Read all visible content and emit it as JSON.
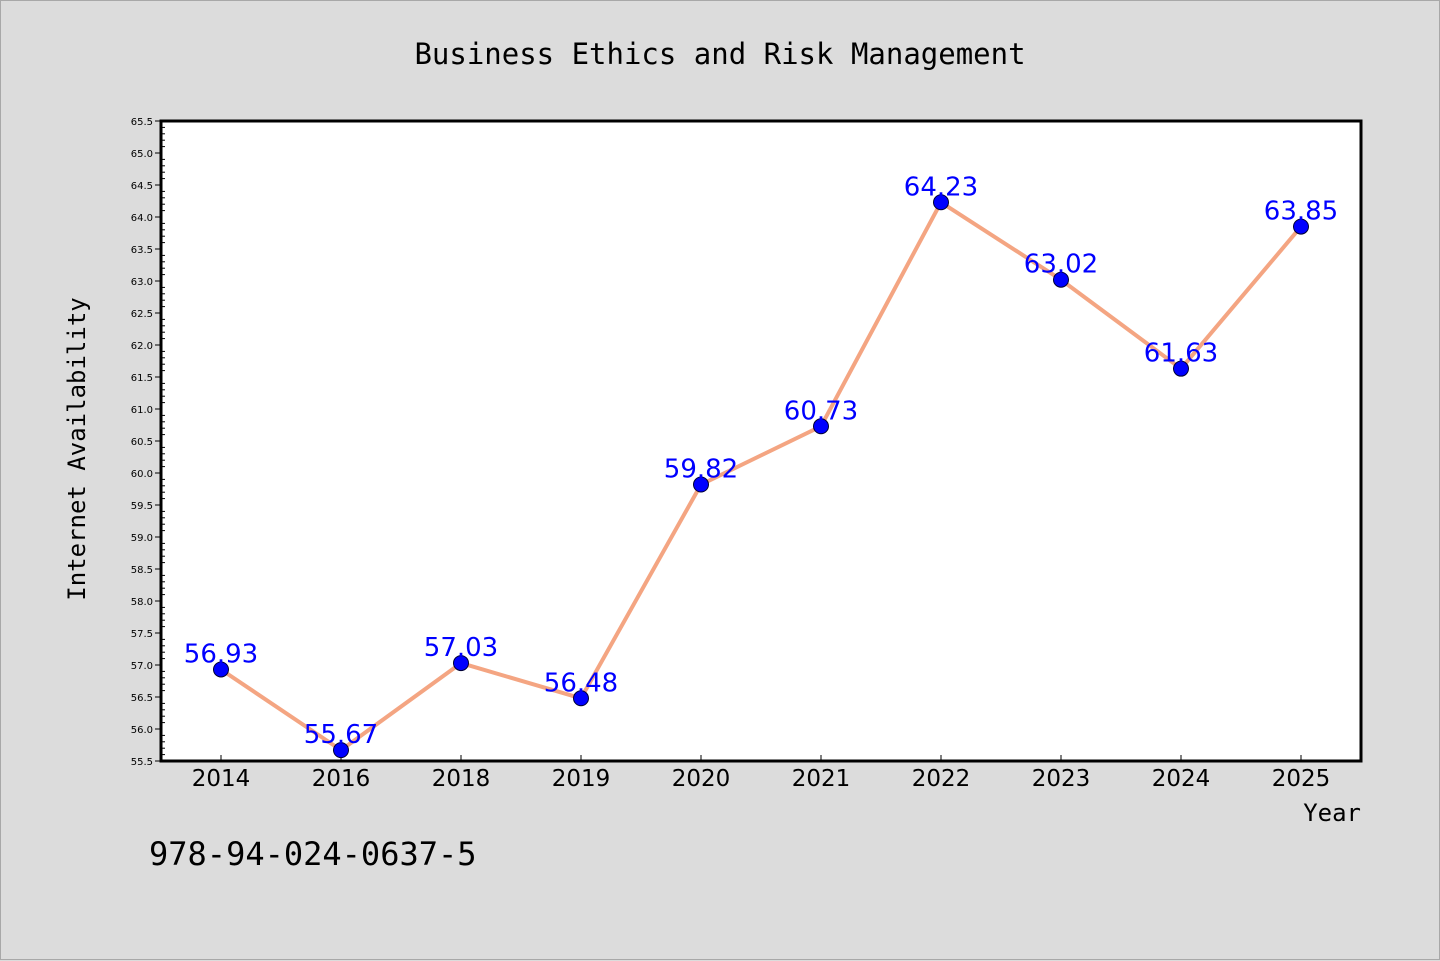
{
  "chart_data": {
    "type": "line",
    "title": "Business Ethics and Risk Management",
    "xlabel": "Year",
    "ylabel": "Internet Availability",
    "categories": [
      "2014",
      "2016",
      "2018",
      "2019",
      "2020",
      "2021",
      "2022",
      "2023",
      "2024",
      "2025"
    ],
    "series": [
      {
        "values": [
          56.93,
          55.67,
          57.03,
          56.48,
          59.82,
          60.73,
          64.23,
          63.02,
          61.63,
          63.85
        ],
        "line_color": "#f4a582",
        "marker_color": "#0000ff",
        "label_color": "#0000ff"
      }
    ],
    "data_labels": [
      "56.93",
      "55.67",
      "57.03",
      "56.48",
      "59.82",
      "60.73",
      "64.23",
      "63.02",
      "61.63",
      "63.85"
    ],
    "ylim": [
      55.5,
      65.5
    ],
    "y_ticks": [
      "55.5",
      "56.0",
      "56.5",
      "57.0",
      "57.5",
      "58.0",
      "58.5",
      "59.0",
      "59.5",
      "60.0",
      "60.5",
      "61.0",
      "61.5",
      "62.0",
      "62.5",
      "63.0",
      "63.5",
      "64.0",
      "64.5",
      "65.0",
      "65.5"
    ],
    "grid": false,
    "legend": "none"
  },
  "footer": {
    "isbn": "978-94-024-0637-5"
  },
  "colors": {
    "background": "#dcdcdc",
    "plot_background": "#ffffff"
  }
}
